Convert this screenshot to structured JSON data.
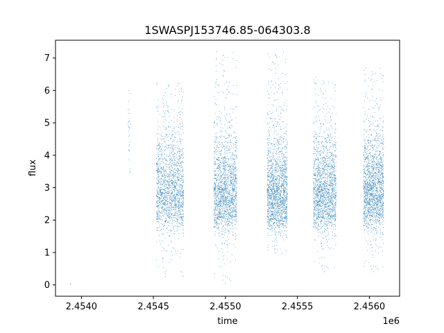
{
  "chart_data": {
    "type": "scatter",
    "title": "1SWASPJ153746.85-064303.8",
    "xlabel": "time",
    "ylabel": "flux",
    "x_offset_label": "1e6",
    "xlim": [
      2.45382,
      2.45621
    ],
    "ylim": [
      -0.35,
      7.55
    ],
    "x_ticks": [
      2.454,
      2.4545,
      2.455,
      2.4555,
      2.456
    ],
    "x_tick_labels": [
      "2.4540",
      "2.4545",
      "2.4550",
      "2.4555",
      "2.4560"
    ],
    "y_ticks": [
      0,
      1,
      2,
      3,
      4,
      5,
      6,
      7
    ],
    "y_tick_labels": [
      "0",
      "1",
      "2",
      "3",
      "4",
      "5",
      "6",
      "7"
    ],
    "grid": false,
    "marker_color": "#1f77b4",
    "series": [
      {
        "clusters": [
          {
            "x_range": [
              2.453924,
              2.453926
            ],
            "y_min": 0.0,
            "y_max": 0.05,
            "y_center": 0.02,
            "y_spread": 0.01,
            "count": 3
          },
          {
            "x_range": [
              2.45432,
              2.45434
            ],
            "y_min": 2.8,
            "y_max": 6.0,
            "y_center": 4.3,
            "y_spread": 1.0,
            "count": 30
          },
          {
            "x_range": [
              2.45452,
              2.45471
            ],
            "y_min": 0.25,
            "y_max": 6.3,
            "y_center": 2.5,
            "y_spread": 0.9,
            "count": 1700
          },
          {
            "x_range": [
              2.45492,
              2.45508
            ],
            "y_min": 0.05,
            "y_max": 7.2,
            "y_center": 2.45,
            "y_spread": 0.85,
            "count": 1700
          },
          {
            "x_range": [
              2.45529,
              2.45543
            ],
            "y_min": 0.9,
            "y_max": 7.2,
            "y_center": 2.4,
            "y_spread": 0.85,
            "count": 1700
          },
          {
            "x_range": [
              2.45561,
              2.45577
            ],
            "y_min": 0.4,
            "y_max": 6.4,
            "y_center": 2.45,
            "y_spread": 0.85,
            "count": 1700
          },
          {
            "x_range": [
              2.45596,
              2.4561
            ],
            "y_min": 0.4,
            "y_max": 6.7,
            "y_center": 2.5,
            "y_spread": 0.85,
            "count": 1700
          }
        ]
      }
    ]
  }
}
